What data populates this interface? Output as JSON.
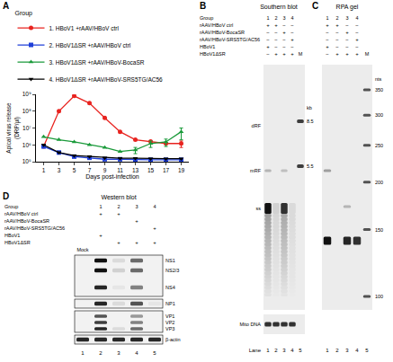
{
  "chart_data": {
    "letter": "A",
    "type": "line",
    "x_label": "Days post-infection",
    "y_label": "Apical virus release (DRP/µl)",
    "legend_title": "Group",
    "legend": "top",
    "log": "y",
    "grid": false,
    "x": [
      1,
      3,
      5,
      7,
      9,
      11,
      13,
      15,
      17,
      19
    ],
    "xlim": [
      0,
      20
    ],
    "xticks": [
      1,
      3,
      5,
      7,
      9,
      11,
      13,
      15,
      17,
      19
    ],
    "ylim": [
      100000,
      1000000000
    ],
    "yticks": [
      {
        "value": 100000,
        "label": "10⁵"
      },
      {
        "value": 1000000,
        "label": "10⁶"
      },
      {
        "value": 10000000,
        "label": "10⁷"
      },
      {
        "value": 100000000,
        "label": "10⁸"
      },
      {
        "value": 1000000000,
        "label": "10⁹"
      }
    ],
    "series": [
      {
        "name": "1. HBoV1 +rAAV/HBoV ctrl",
        "color": "#e8231f",
        "marker": "circle",
        "values": [
          800000,
          100000000,
          800000000,
          300000000,
          40000000,
          6000000,
          2000000,
          1600000,
          1200000,
          1200000
        ],
        "errors": [
          null,
          null,
          null,
          null,
          null,
          null,
          null,
          null,
          null,
          500000
        ]
      },
      {
        "name": "2. HBoV1ΔSR +rAAV/HBoV ctrl",
        "color": "#1f3fd8",
        "marker": "square",
        "values": [
          800000,
          350000,
          200000,
          170000,
          140000,
          140000,
          130000,
          130000,
          130000,
          130000
        ]
      },
      {
        "name": "3. HBoV1ΔSR +rAAV/HBoV-BocaSR",
        "color": "#1a9a3a",
        "marker": "triangle-up",
        "values": [
          3000000,
          2000000,
          1500000,
          1000000,
          700000,
          400000,
          500000,
          1200000,
          1500000,
          6000000
        ],
        "errors": [
          null,
          null,
          null,
          null,
          null,
          null,
          200000,
          500000,
          700000,
          4000000
        ]
      },
      {
        "name": "4. HBoV1ΔSR +rAAV/HBoV-SRS5TG/AC56",
        "color": "#000000",
        "marker": "triangle-down",
        "values": [
          1000000,
          350000,
          230000,
          200000,
          170000,
          160000,
          160000,
          150000,
          150000,
          150000
        ]
      }
    ]
  },
  "blots": [
    {
      "letter": "B",
      "title": "Southern blot",
      "group_label": "Group",
      "groups": [
        "1",
        "2",
        "3",
        "4"
      ],
      "rows": [
        {
          "label": "rAAV/HBoV ctrl",
          "signs": [
            "+",
            "+",
            "−",
            "−"
          ]
        },
        {
          "label": "rAAV/HBoV-BocaSR",
          "signs": [
            "−",
            "−",
            "+",
            "−"
          ]
        },
        {
          "label": "rAAV/HBoV-SRS5TG/AC56",
          "signs": [
            "−",
            "−",
            "−",
            "+"
          ]
        },
        {
          "label": "HBoV1",
          "signs": [
            "+",
            "−",
            "−",
            "−"
          ]
        },
        {
          "label": "HBoV1ΔSR",
          "signs": [
            "−",
            "+",
            "+",
            "+"
          ]
        }
      ],
      "marker_lane": "M",
      "marker_unit": "kb",
      "marker_sizes": [
        8.5,
        5.5
      ],
      "band_labels": [
        "dRF",
        "mRF",
        "ss"
      ],
      "loading_control": "Mito DNA",
      "lane_label": "Lane",
      "lanes": [
        1,
        2,
        3,
        4,
        5
      ]
    },
    {
      "letter": "C",
      "title": "RPA gel",
      "groups": [
        "1",
        "2",
        "3",
        "4"
      ],
      "signs": [
        [
          "+",
          "+",
          "−",
          "−"
        ],
        [
          "−",
          "−",
          "+",
          "−"
        ],
        [
          "−",
          "−",
          "−",
          "+"
        ],
        [
          "+",
          "−",
          "−",
          "−"
        ],
        [
          "−",
          "+",
          "+",
          "+"
        ]
      ],
      "marker_lane": "M",
      "marker_unit": "nts",
      "marker_sizes": [
        350,
        300,
        250,
        200,
        150,
        100
      ],
      "lanes": [
        1,
        2,
        3,
        4,
        5
      ]
    },
    {
      "letter": "D",
      "title": "Western blot",
      "group_label": "Group",
      "groups": [
        "1",
        "2",
        "3",
        "4"
      ],
      "mock_label": "Mock",
      "rows": [
        {
          "label": "rAAV/HBoV ctrl",
          "signs": [
            null,
            "+",
            "+",
            null,
            null
          ]
        },
        {
          "label": "rAAV/HBoV-BocaSR",
          "signs": [
            null,
            null,
            null,
            "+",
            null
          ]
        },
        {
          "label": "rAAV/HBoV-SRS5TG/AC56",
          "signs": [
            null,
            null,
            null,
            null,
            "+"
          ]
        },
        {
          "label": "HBoV1",
          "signs": [
            null,
            "+",
            null,
            null,
            null
          ]
        },
        {
          "label": "HBoV1ΔSR",
          "signs": [
            null,
            null,
            "+",
            "+",
            "+"
          ]
        }
      ],
      "band_labels": [
        "NS1",
        "NS2/3",
        "NS4",
        "NP1",
        "VP1",
        "VP2",
        "VP3",
        "β-actin"
      ],
      "lanes": [
        1,
        2,
        3,
        4,
        5
      ]
    }
  ]
}
